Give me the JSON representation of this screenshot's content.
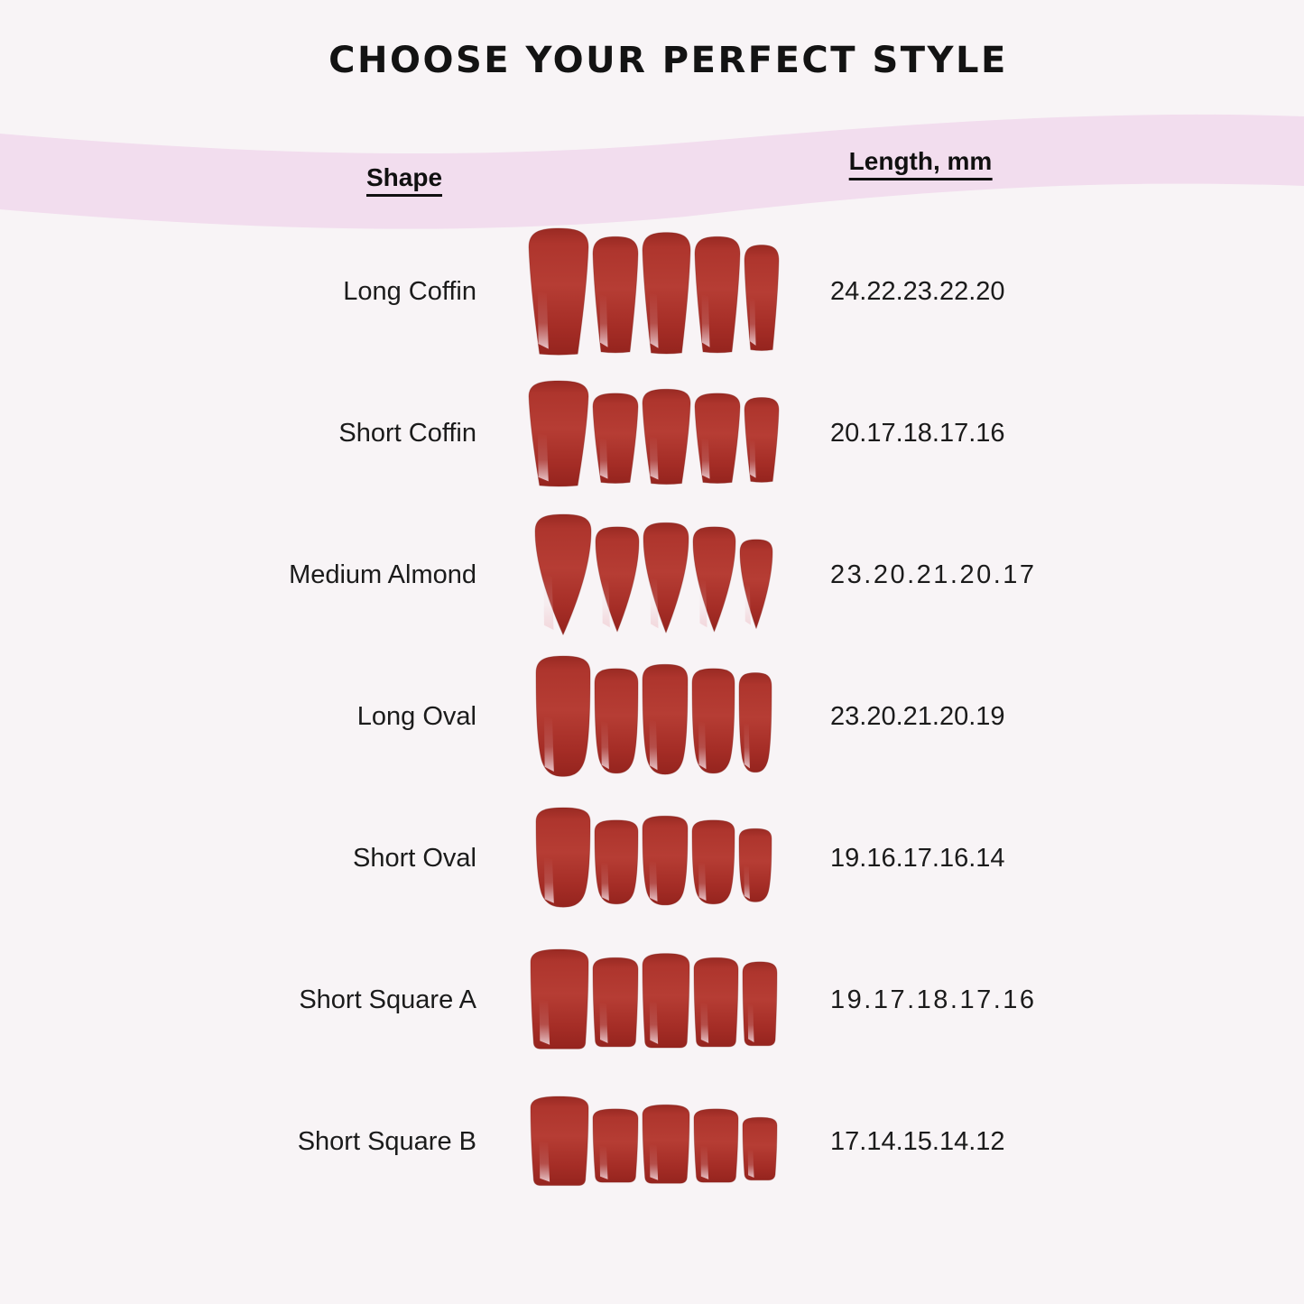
{
  "page": {
    "background_color": "#f8f4f6",
    "band_color": "#f2ddee",
    "title": "CHOOSE YOUR PERFECT STYLE"
  },
  "nail_colors": {
    "base": "#b23931",
    "dark_edge": "#8e241e",
    "shadow": "#7e1d18",
    "highlight": "#f2d5da"
  },
  "chart_data": {
    "type": "table",
    "title": "CHOOSE YOUR PERFECT STYLE",
    "columns": [
      "Shape",
      "Length, mm"
    ],
    "rows": [
      {
        "shape": "Long Coffin",
        "lengths": "24.22.23.22.20",
        "lengths_mm": [
          24,
          22,
          23,
          22,
          20
        ]
      },
      {
        "shape": "Short Coffin",
        "lengths": "20.17.18.17.16",
        "lengths_mm": [
          20,
          17,
          18,
          17,
          16
        ]
      },
      {
        "shape": "Medium Almond",
        "lengths": "23.20.21.20.17",
        "lengths_mm": [
          23,
          20,
          21,
          20,
          17
        ]
      },
      {
        "shape": "Long Oval",
        "lengths": "23.20.21.20.19",
        "lengths_mm": [
          23,
          20,
          21,
          20,
          19
        ]
      },
      {
        "shape": "Short Oval",
        "lengths": "19.16.17.16.14",
        "lengths_mm": [
          19,
          16,
          17,
          16,
          14
        ]
      },
      {
        "shape": "Short Square A",
        "lengths": "19.17.18.17.16",
        "lengths_mm": [
          19,
          17,
          18,
          17,
          16
        ]
      },
      {
        "shape": "Short Square B",
        "lengths": "17.14.15.14.12",
        "lengths_mm": [
          17,
          14,
          15,
          14,
          12
        ]
      }
    ]
  },
  "table": {
    "headers": {
      "shape": "Shape",
      "length": "Length, mm"
    },
    "rows": [
      {
        "shape": "Long Coffin",
        "lengths": "24.22.23.22.20",
        "lengths_mm": [
          24,
          22,
          23,
          22,
          20
        ],
        "nail_shape": "coffin",
        "image": "long-coffin-red-nail-set"
      },
      {
        "shape": "Short Coffin",
        "lengths": "20.17.18.17.16",
        "lengths_mm": [
          20,
          17,
          18,
          17,
          16
        ],
        "nail_shape": "coffin",
        "image": "short-coffin-red-nail-set"
      },
      {
        "shape": "Medium Almond",
        "lengths": "23.20.21.20.17",
        "lengths_mm": [
          23,
          20,
          21,
          20,
          17
        ],
        "nail_shape": "almond",
        "image": "medium-almond-red-nail-set"
      },
      {
        "shape": "Long Oval",
        "lengths": "23.20.21.20.19",
        "lengths_mm": [
          23,
          20,
          21,
          20,
          19
        ],
        "nail_shape": "oval",
        "image": "long-oval-red-nail-set"
      },
      {
        "shape": "Short Oval",
        "lengths": "19.16.17.16.14",
        "lengths_mm": [
          19,
          16,
          17,
          16,
          14
        ],
        "nail_shape": "oval",
        "image": "short-oval-red-nail-set"
      },
      {
        "shape": "Short Square A",
        "lengths": "19.17.18.17.16",
        "lengths_mm": [
          19,
          17,
          18,
          17,
          16
        ],
        "nail_shape": "square",
        "image": "short-square-a-red-nail-set"
      },
      {
        "shape": "Short Square B",
        "lengths": "17.14.15.14.12",
        "lengths_mm": [
          17,
          14,
          15,
          14,
          12
        ],
        "nail_shape": "square",
        "image": "short-square-b-red-nail-set"
      }
    ]
  }
}
